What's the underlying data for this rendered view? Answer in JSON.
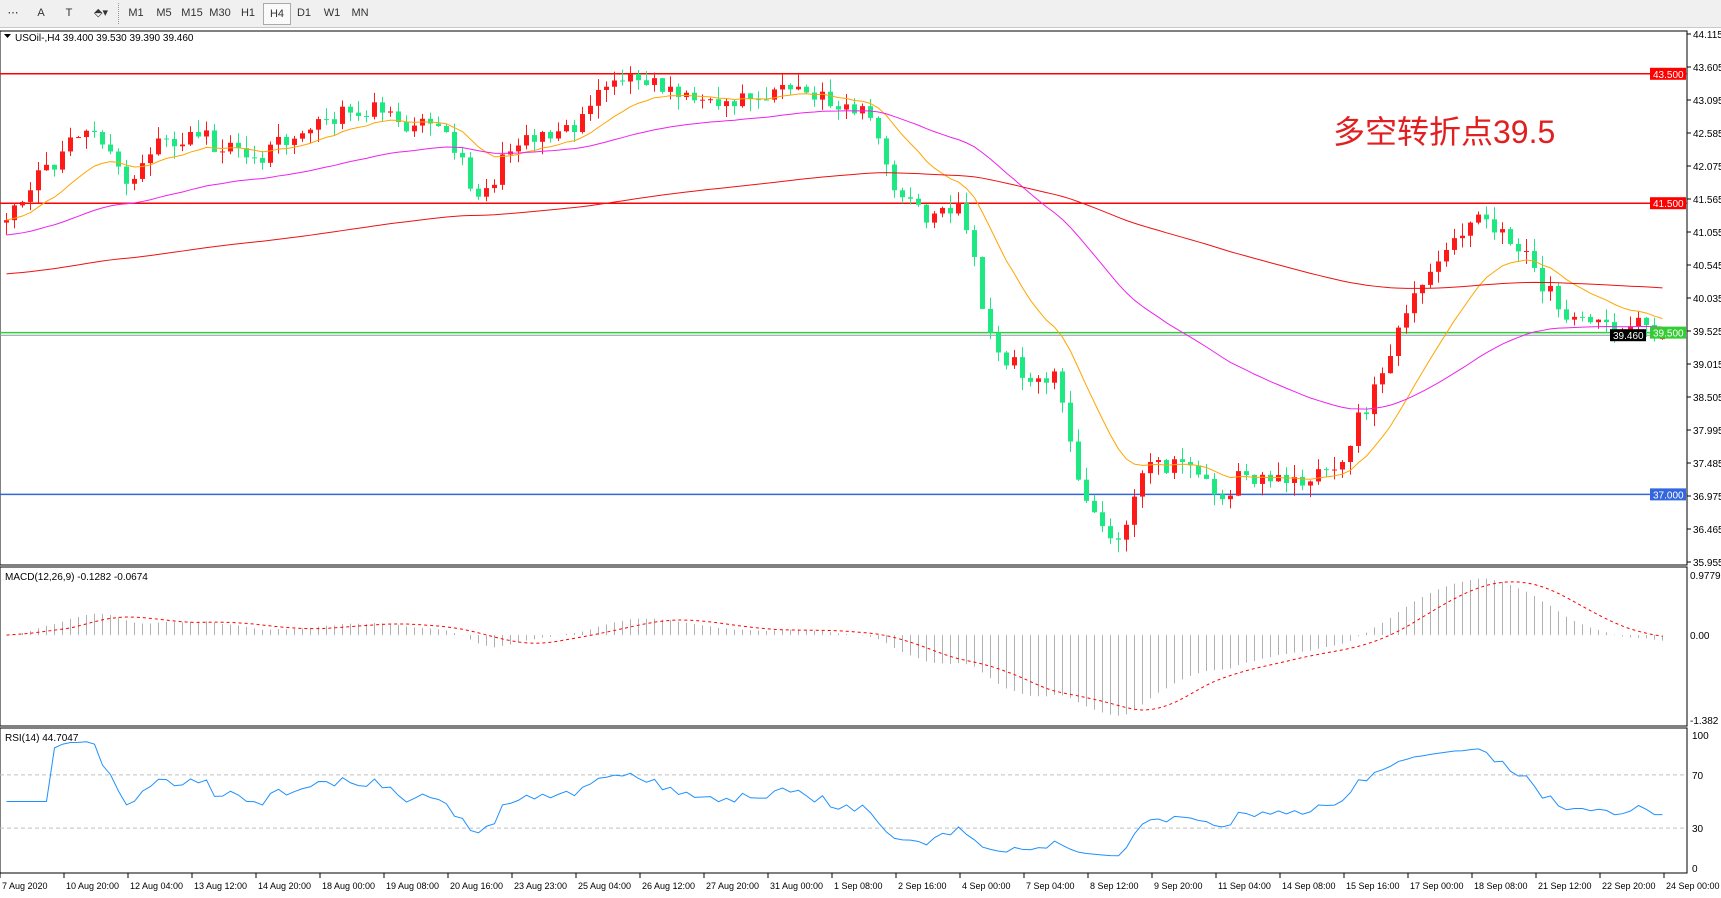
{
  "toolbar": {
    "tools": [
      {
        "name": "fibo-tool-icon",
        "glyph": "⋯"
      },
      {
        "name": "text-tool-icon",
        "glyph": "A"
      },
      {
        "name": "text-label-tool-icon",
        "glyph": "T"
      },
      {
        "name": "arrows-tool-icon",
        "glyph": "⬘▾"
      }
    ],
    "timeframes": [
      "M1",
      "M5",
      "M15",
      "M30",
      "H1",
      "H4",
      "D1",
      "W1",
      "MN"
    ],
    "active_timeframe": "H4"
  },
  "main": {
    "header": "USOil-,H4  39.400 39.530 39.390 39.460",
    "annotation": "多空转折点39.5",
    "price_ticks": [
      "44.115",
      "43.605",
      "43.095",
      "42.585",
      "42.075",
      "41.565",
      "41.055",
      "40.545",
      "40.035",
      "39.525",
      "39.015",
      "38.505",
      "37.995",
      "37.485",
      "36.975",
      "36.465",
      "35.955"
    ],
    "levels": [
      {
        "price": 43.5,
        "label": "43.500",
        "color": "#ff0000"
      },
      {
        "price": 41.5,
        "label": "41.500",
        "color": "#ff0000"
      },
      {
        "price": 39.5,
        "label": "39.500",
        "color": "#33cc33"
      },
      {
        "price": 37.0,
        "label": "37.000",
        "color": "#3366dd"
      }
    ],
    "current_price": {
      "price": 39.46,
      "label": "39.460"
    },
    "colors": {
      "bull": "#ff1a1a",
      "bear": "#1ee882",
      "ma_fast": "#ffa500",
      "ma_mid": "#ee22ee",
      "ma_slow": "#ee1111",
      "grid": "#000000"
    }
  },
  "chart_data": {
    "type": "candlestick",
    "symbol": "USOil-",
    "timeframe": "H4",
    "ylim": [
      35.955,
      44.115
    ],
    "closes_every_4_bars": [
      41.2,
      41.7,
      42.3,
      42.6,
      41.8,
      42.5,
      42.6,
      42.3,
      42.2,
      42.4,
      42.8,
      42.9,
      42.9,
      42.7,
      42.6,
      41.6,
      42.3,
      42.6,
      42.6,
      43.3,
      43.4,
      43.3,
      43.1,
      43.0,
      43.1,
      43.3,
      43.0,
      43.0,
      41.7,
      41.2,
      41.5,
      39.5,
      38.8,
      38.9,
      36.9,
      36.3,
      37.5,
      37.5,
      37.0,
      37.3,
      37.3,
      37.2,
      37.5,
      38.7,
      39.8,
      40.6,
      41.2,
      41.1,
      40.5,
      39.7,
      39.7,
      39.6,
      39.46
    ],
    "last_ohlc": {
      "open": 39.4,
      "high": 39.53,
      "low": 39.39,
      "close": 39.46
    },
    "time_labels": [
      "7 Aug 2020",
      "10 Aug 20:00",
      "12 Aug 04:00",
      "13 Aug 12:00",
      "14 Aug 20:00",
      "18 Aug 00:00",
      "19 Aug 08:00",
      "20 Aug 16:00",
      "23 Aug 23:00",
      "25 Aug 04:00",
      "26 Aug 12:00",
      "27 Aug 20:00",
      "31 Aug 00:00",
      "1 Sep 08:00",
      "2 Sep 16:00",
      "4 Sep 00:00",
      "7 Sep 04:00",
      "8 Sep 12:00",
      "9 Sep 20:00",
      "11 Sep 04:00",
      "14 Sep 08:00",
      "15 Sep 16:00",
      "17 Sep 00:00",
      "18 Sep 08:00",
      "21 Sep 12:00",
      "22 Sep 20:00",
      "24 Sep 00:00"
    ]
  },
  "macd": {
    "label": "MACD(12,26,9) -0.1282 -0.0674",
    "ticks": [
      "0.9779",
      "0.00",
      "-1.382"
    ],
    "range": [
      -1.382,
      0.9779
    ]
  },
  "rsi": {
    "label": "RSI(14) 44.7047",
    "ticks": [
      "100",
      "70",
      "30",
      "0"
    ],
    "levels": [
      70,
      30
    ],
    "color": "#1e90ff"
  }
}
